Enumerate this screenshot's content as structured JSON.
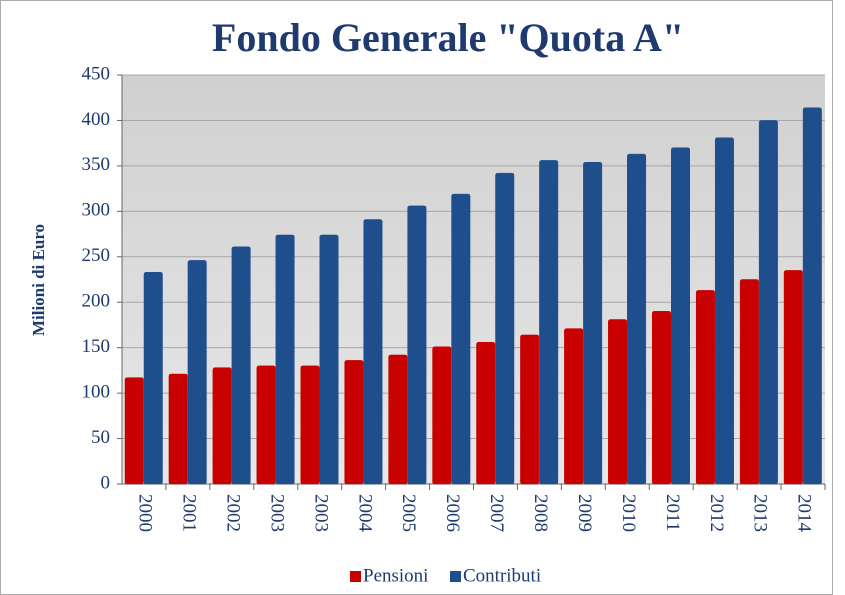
{
  "chart_data": {
    "type": "bar",
    "title": "Fondo Generale \"Quota A\"",
    "y_label": "Milioni di Euro",
    "categories": [
      "2000",
      "2001",
      "2002",
      "2003",
      "2003",
      "2004",
      "2005",
      "2006",
      "2007",
      "2008",
      "2009",
      "2010",
      "2011",
      "2012",
      "2013",
      "2014"
    ],
    "series": [
      {
        "name": "Pensioni",
        "color": "#c80000",
        "values": [
          117,
          121,
          128,
          130,
          130,
          136,
          142,
          151,
          156,
          164,
          171,
          181,
          190,
          213,
          225,
          235
        ]
      },
      {
        "name": "Contributi",
        "color": "#1f4e8c",
        "values": [
          233,
          246,
          261,
          274,
          274,
          291,
          306,
          319,
          342,
          356,
          354,
          363,
          370,
          381,
          400,
          414
        ]
      }
    ],
    "ylim": [
      0,
      450
    ],
    "yticks": [
      0,
      50,
      100,
      150,
      200,
      250,
      300,
      350,
      400,
      450
    ],
    "grid": true,
    "legend": "bottom"
  }
}
